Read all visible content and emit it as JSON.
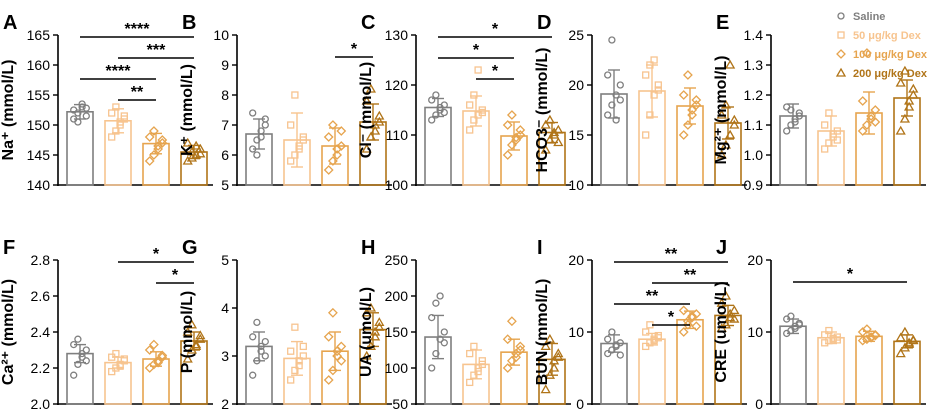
{
  "colors": {
    "saline": "#7f7f7f",
    "dex50": "#f7c48f",
    "dex100": "#e6a44e",
    "dex200": "#b07418"
  },
  "legend": {
    "entries": [
      {
        "label": "Saline",
        "marker": "circle",
        "color": "#7f7f7f"
      },
      {
        "label": "50 μg/kg Dex",
        "marker": "square",
        "color": "#f7c48f"
      },
      {
        "label": "100 μg/kg Dex",
        "marker": "diamond",
        "color": "#e6a44e"
      },
      {
        "label": "200 μg/kg Dex",
        "marker": "triangle",
        "color": "#b07418"
      }
    ]
  },
  "chart_data": [
    {
      "type": "bar",
      "panel": "A",
      "ylabel": "Na⁺ (mmol/L)",
      "ylim": [
        140,
        165
      ],
      "yticks": [
        140,
        145,
        150,
        155,
        160,
        165
      ],
      "categories": [
        "Saline",
        "50 μg/kg Dex",
        "100 μg/kg Dex",
        "200 μg/kg Dex"
      ],
      "means": [
        152.2,
        150.7,
        146.9,
        145.5
      ],
      "sd": [
        1.2,
        2.0,
        1.7,
        1.1
      ],
      "points": [
        [
          151,
          152,
          153,
          151.5,
          152.5,
          150.5,
          153.5,
          152.8
        ],
        [
          148,
          149,
          150,
          151,
          152,
          153,
          150.5,
          151.5
        ],
        [
          144,
          145,
          146,
          147,
          148,
          149,
          146.5,
          147.5
        ],
        [
          144,
          144.5,
          145,
          146,
          147,
          145.5,
          146.5,
          145.2
        ]
      ],
      "significance": [
        {
          "from": 0,
          "to": 3,
          "label": "****"
        },
        {
          "from": 1,
          "to": 3,
          "label": "***"
        },
        {
          "from": 0,
          "to": 2,
          "label": "****"
        },
        {
          "from": 1,
          "to": 2,
          "label": "**"
        }
      ]
    },
    {
      "type": "bar",
      "panel": "B",
      "ylabel": "K⁺ (mmol/L)",
      "ylim": [
        5,
        10
      ],
      "yticks": [
        5,
        6,
        7,
        8,
        9,
        10
      ],
      "categories": [
        "Saline",
        "50 μg/kg Dex",
        "100 μg/kg Dex",
        "200 μg/kg Dex"
      ],
      "means": [
        6.7,
        6.5,
        6.3,
        7.1
      ],
      "sd": [
        0.5,
        0.9,
        0.6,
        0.6
      ],
      "points": [
        [
          6.2,
          6.5,
          6.8,
          7.0,
          7.4,
          6.0,
          6.6,
          7.2
        ],
        [
          5.8,
          6.0,
          6.3,
          6.6,
          7.0,
          8.0,
          6.2,
          6.5
        ],
        [
          5.5,
          5.8,
          6.0,
          6.3,
          6.6,
          7.0,
          6.2,
          6.8
        ],
        [
          6.2,
          6.6,
          7.0,
          7.3,
          7.8,
          8.2,
          6.8,
          7.1
        ]
      ],
      "significance": [
        {
          "from": 2,
          "to": 3,
          "label": "*"
        }
      ]
    },
    {
      "type": "bar",
      "panel": "C",
      "ylabel": "Cl⁻ (mmol/L)",
      "ylim": [
        100,
        130
      ],
      "yticks": [
        100,
        110,
        120,
        130
      ],
      "categories": [
        "Saline",
        "50 μg/kg Dex",
        "100 μg/kg Dex",
        "200 μg/kg Dex"
      ],
      "means": [
        115.5,
        114.8,
        109.8,
        110.5
      ],
      "sd": [
        1.8,
        3.0,
        2.8,
        2.0
      ],
      "points": [
        [
          113,
          114,
          115,
          116,
          117,
          118,
          115.5,
          114.5
        ],
        [
          111,
          113,
          114,
          115,
          116,
          118,
          123,
          114.5
        ],
        [
          106,
          108,
          109,
          110,
          112,
          114,
          109.5,
          111
        ],
        [
          107,
          109,
          110,
          111,
          112,
          113,
          110.5,
          108.5
        ]
      ],
      "significance": [
        {
          "from": 0,
          "to": 3,
          "label": "*"
        },
        {
          "from": 0,
          "to": 2,
          "label": "*"
        },
        {
          "from": 1,
          "to": 2,
          "label": "*"
        }
      ]
    },
    {
      "type": "bar",
      "panel": "D",
      "ylabel": "HCO3⁻ (mmol/L)",
      "ylim": [
        10,
        25
      ],
      "yticks": [
        10,
        15,
        20,
        25
      ],
      "categories": [
        "Saline",
        "50 μg/kg Dex",
        "100 μg/kg Dex",
        "200 μg/kg Dex"
      ],
      "means": [
        19.1,
        19.4,
        17.9,
        16.2
      ],
      "sd": [
        2.4,
        2.6,
        1.8,
        1.6
      ],
      "points": [
        [
          17,
          18,
          19,
          20,
          21,
          24.5,
          16.5,
          18.5
        ],
        [
          15,
          17,
          19,
          20,
          21,
          22,
          22.5,
          19.5
        ],
        [
          15,
          16,
          17,
          18,
          19,
          21,
          17.5,
          18.5
        ],
        [
          13,
          14,
          15,
          16,
          17,
          18,
          22,
          16.5
        ]
      ],
      "significance": []
    },
    {
      "type": "bar",
      "panel": "E",
      "ylabel": "Mg²⁺ (mmol/L)",
      "ylim": [
        0.9,
        1.4
      ],
      "yticks": [
        0.9,
        1.0,
        1.1,
        1.2,
        1.3,
        1.4
      ],
      "categories": [
        "Saline",
        "50 μg/kg Dex",
        "100 μg/kg Dex",
        "200 μg/kg Dex"
      ],
      "means": [
        1.13,
        1.08,
        1.14,
        1.19
      ],
      "sd": [
        0.04,
        0.05,
        0.07,
        0.06
      ],
      "points": [
        [
          1.08,
          1.1,
          1.12,
          1.14,
          1.16,
          1.15,
          1.11,
          1.13
        ],
        [
          1.02,
          1.04,
          1.06,
          1.08,
          1.1,
          1.14,
          1.07,
          1.05
        ],
        [
          1.08,
          1.1,
          1.12,
          1.15,
          1.18,
          1.34,
          1.13,
          1.11
        ],
        [
          1.08,
          1.12,
          1.16,
          1.2,
          1.24,
          1.28,
          1.18,
          1.22
        ]
      ],
      "significance": []
    },
    {
      "type": "bar",
      "panel": "F",
      "ylabel": "Ca²⁺ (mmol/L)",
      "ylim": [
        2.0,
        2.8
      ],
      "yticks": [
        2.0,
        2.2,
        2.4,
        2.6,
        2.8
      ],
      "categories": [
        "Saline",
        "50 μg/kg Dex",
        "100 μg/kg Dex",
        "200 μg/kg Dex"
      ],
      "means": [
        2.28,
        2.23,
        2.25,
        2.35
      ],
      "sd": [
        0.05,
        0.03,
        0.04,
        0.05
      ],
      "points": [
        [
          2.16,
          2.22,
          2.26,
          2.3,
          2.33,
          2.36,
          2.28,
          2.24
        ],
        [
          2.18,
          2.2,
          2.22,
          2.24,
          2.26,
          2.28,
          2.21,
          2.25
        ],
        [
          2.2,
          2.22,
          2.24,
          2.26,
          2.3,
          2.33,
          2.23,
          2.27
        ],
        [
          2.25,
          2.3,
          2.33,
          2.36,
          2.4,
          2.44,
          2.32,
          2.38
        ]
      ],
      "significance": [
        {
          "from": 1,
          "to": 3,
          "label": "*"
        },
        {
          "from": 2,
          "to": 3,
          "label": "*"
        }
      ]
    },
    {
      "type": "bar",
      "panel": "G",
      "ylabel": "P (mmol/L)",
      "ylim": [
        2,
        5
      ],
      "yticks": [
        2,
        3,
        4,
        5
      ],
      "categories": [
        "Saline",
        "50 μg/kg Dex",
        "100 μg/kg Dex",
        "200 μg/kg Dex"
      ],
      "means": [
        3.2,
        2.95,
        3.1,
        3.55
      ],
      "sd": [
        0.3,
        0.35,
        0.4,
        0.35
      ],
      "points": [
        [
          2.6,
          2.9,
          3.1,
          3.3,
          3.4,
          3.7,
          3.2,
          3.0
        ],
        [
          2.5,
          2.7,
          2.9,
          3.0,
          3.1,
          3.6,
          2.8,
          3.2
        ],
        [
          2.5,
          2.7,
          3.0,
          3.2,
          3.4,
          3.9,
          3.1,
          2.9
        ],
        [
          3.0,
          3.2,
          3.5,
          3.7,
          3.9,
          4.0,
          3.4,
          3.6
        ]
      ],
      "significance": []
    },
    {
      "type": "bar",
      "panel": "H",
      "ylabel": "UA (umol/L)",
      "ylim": [
        50,
        250
      ],
      "yticks": [
        50,
        100,
        150,
        200,
        250
      ],
      "categories": [
        "Saline",
        "50 μg/kg Dex",
        "100 μg/kg Dex",
        "200 μg/kg Dex"
      ],
      "means": [
        143,
        105,
        122,
        112
      ],
      "sd": [
        30,
        20,
        18,
        22
      ],
      "points": [
        [
          100,
          120,
          140,
          150,
          170,
          190,
          200,
          135
        ],
        [
          80,
          90,
          100,
          110,
          120,
          130,
          95,
          105
        ],
        [
          100,
          110,
          120,
          130,
          140,
          165,
          115,
          125
        ],
        [
          70,
          90,
          110,
          120,
          130,
          140,
          100,
          115
        ]
      ],
      "significance": []
    },
    {
      "type": "bar",
      "panel": "I",
      "ylabel": "BUN (mmol/L)",
      "ylim": [
        0,
        20
      ],
      "yticks": [
        0,
        10,
        20
      ],
      "categories": [
        "Saline",
        "50 μg/kg Dex",
        "100 μg/kg Dex",
        "200 μg/kg Dex"
      ],
      "means": [
        8.4,
        9.0,
        11.7,
        12.3
      ],
      "sd": [
        1.2,
        0.8,
        1.2,
        1.4
      ],
      "points": [
        [
          7,
          7.5,
          8,
          8.5,
          9,
          10,
          8.2,
          6.8
        ],
        [
          8,
          8.5,
          9,
          9.5,
          10,
          11,
          8.8,
          9.2
        ],
        [
          10,
          11,
          12,
          12.5,
          13,
          11.5,
          12.2,
          10.8
        ],
        [
          10.5,
          11,
          12,
          13,
          14,
          15,
          12.5,
          11.8
        ]
      ],
      "significance": [
        {
          "from": 0,
          "to": 3,
          "label": "**"
        },
        {
          "from": 1,
          "to": 3,
          "label": "**"
        },
        {
          "from": 0,
          "to": 2,
          "label": "**"
        },
        {
          "from": 1,
          "to": 2,
          "label": "*"
        }
      ]
    },
    {
      "type": "bar",
      "panel": "J",
      "ylabel": "CRE (umol/L)",
      "ylim": [
        0,
        20
      ],
      "yticks": [
        0,
        10,
        20
      ],
      "categories": [
        "Saline",
        "50 μg/kg Dex",
        "100 μg/kg Dex",
        "200 μg/kg Dex"
      ],
      "means": [
        10.8,
        9.2,
        9.4,
        8.7
      ],
      "sd": [
        1.0,
        0.8,
        0.7,
        0.9
      ],
      "points": [
        [
          9.8,
          10.2,
          10.8,
          11.2,
          11.8,
          12.2,
          10.5,
          11.0
        ],
        [
          8.5,
          8.8,
          9.0,
          9.3,
          9.6,
          10.2,
          9.1,
          8.9
        ],
        [
          8.8,
          9.0,
          9.3,
          9.6,
          10.0,
          10.4,
          9.2,
          9.5
        ],
        [
          7.0,
          7.8,
          8.3,
          8.8,
          9.2,
          10.0,
          8.5,
          8.9
        ]
      ],
      "significance": [
        {
          "from": 0,
          "to": 3,
          "label": "*"
        }
      ]
    }
  ]
}
